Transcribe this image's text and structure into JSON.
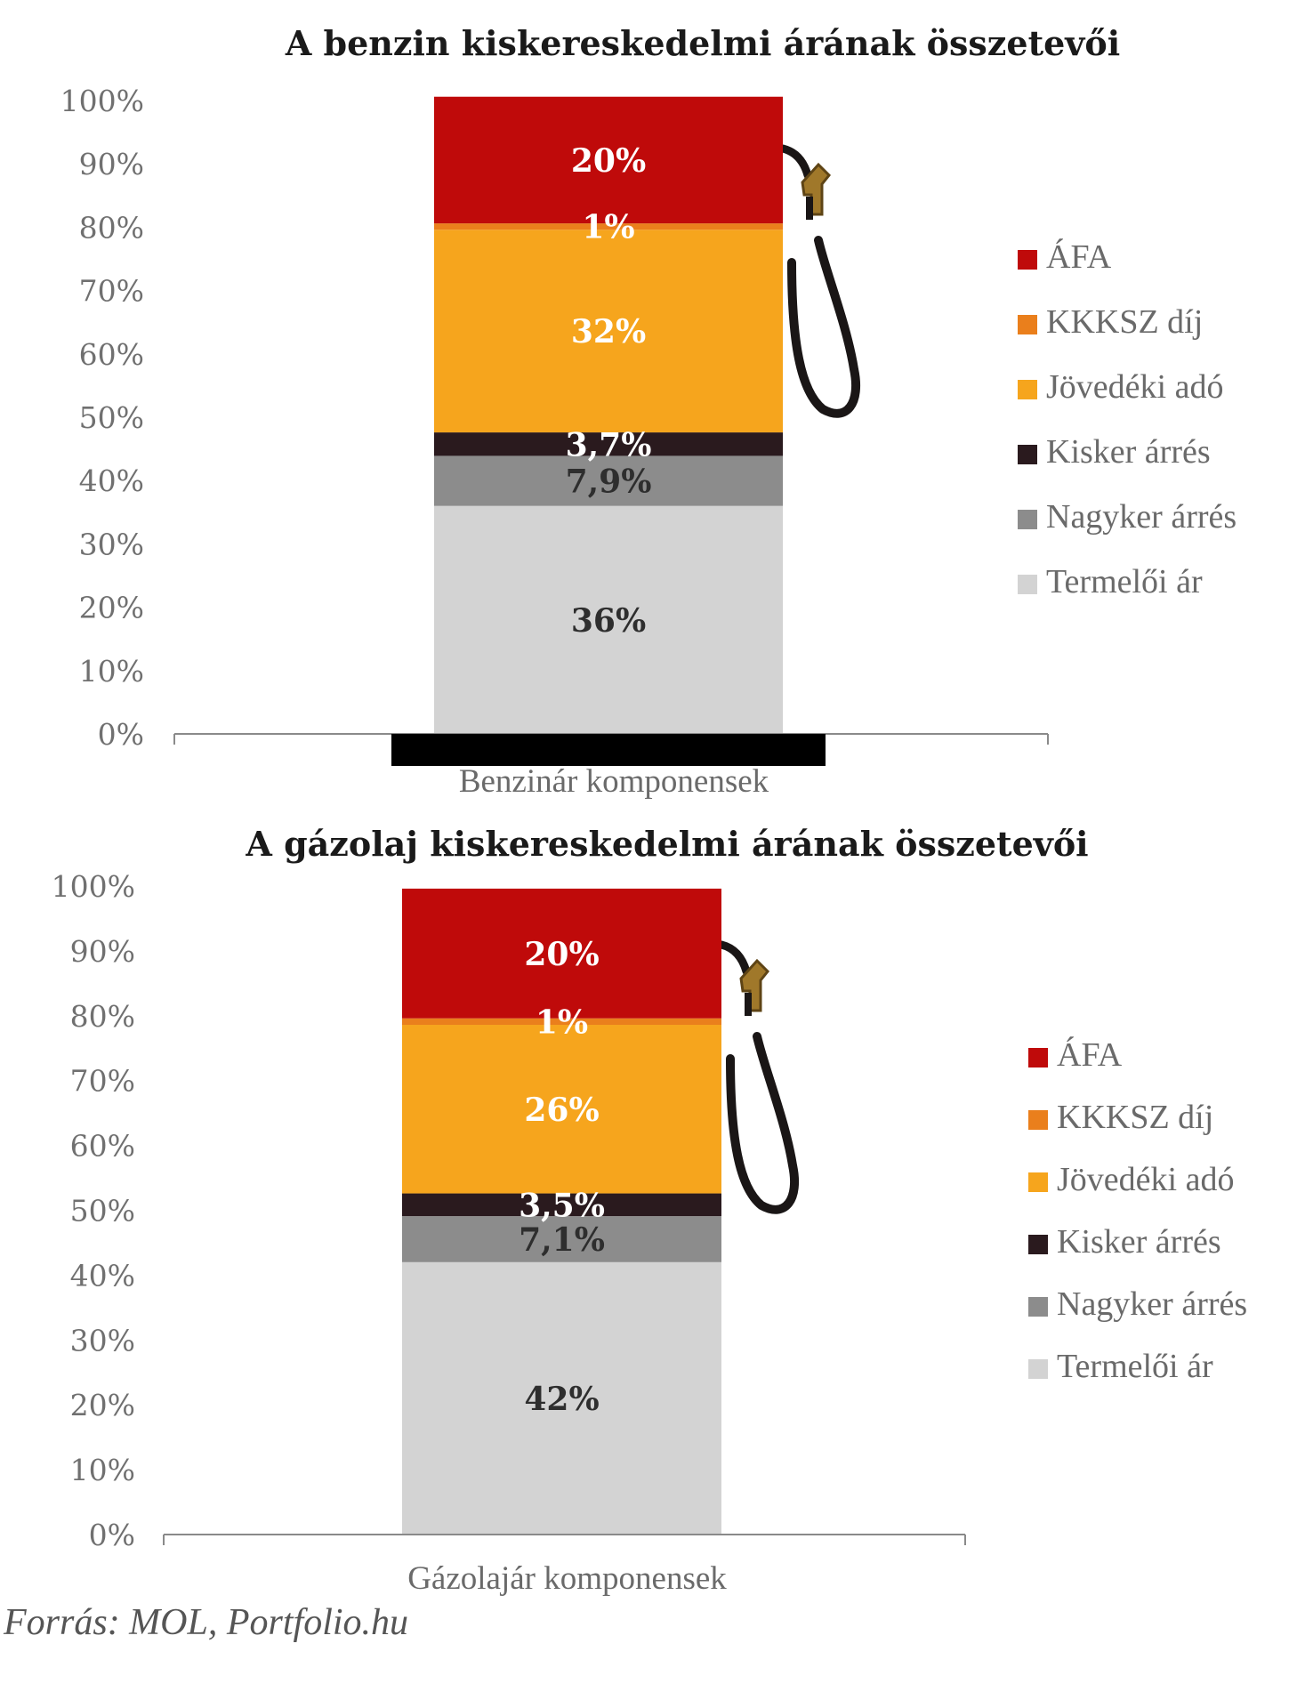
{
  "chart_data": [
    {
      "type": "bar",
      "stacked": true,
      "title": "A benzin kiskereskedelmi árának összetevői",
      "xlabel": "Benzinár komponensek",
      "ylabel": "",
      "ylim": [
        0,
        100
      ],
      "yticks": [
        "0%",
        "10%",
        "20%",
        "30%",
        "40%",
        "50%",
        "60%",
        "70%",
        "80%",
        "90%",
        "100%"
      ],
      "categories": [
        "Benzinár komponensek"
      ],
      "series": [
        {
          "name": "Termelői ár",
          "values": [
            36
          ],
          "label": "36%",
          "color": "#d3d3d3",
          "label_color": "#2e2e2e"
        },
        {
          "name": "Nagyker árrés",
          "values": [
            7.9
          ],
          "label": "7,9%",
          "color": "#8c8c8c",
          "label_color": "#2e2e2e"
        },
        {
          "name": "Kisker árrés",
          "values": [
            3.7
          ],
          "label": "3,7%",
          "color": "#2a1a1e",
          "label_color": "#ffffff"
        },
        {
          "name": "Jövedéki adó",
          "values": [
            32
          ],
          "label": "32%",
          "color": "#f6a51d",
          "label_color": "#ffffff"
        },
        {
          "name": "KKKSZ díj",
          "values": [
            1
          ],
          "label": "1%",
          "color": "#ea7f1c",
          "label_color": "#ffffff"
        },
        {
          "name": "ÁFA",
          "values": [
            20
          ],
          "label": "20%",
          "color": "#bf0a0a",
          "label_color": "#ffffff"
        }
      ],
      "legend": {
        "placement": "right",
        "order": [
          "ÁFA",
          "KKKSZ díj",
          "Jövedéki adó",
          "Kisker árrés",
          "Nagyker árrés",
          "Termelői ár"
        ]
      },
      "decoration": "fuel-pump-nozzle"
    },
    {
      "type": "bar",
      "stacked": true,
      "title": "A gázolaj kiskereskedelmi árának összetevői",
      "xlabel": "Gázolajár komponensek",
      "ylabel": "",
      "ylim": [
        0,
        100
      ],
      "yticks": [
        "0%",
        "10%",
        "20%",
        "30%",
        "40%",
        "50%",
        "60%",
        "70%",
        "80%",
        "90%",
        "100%"
      ],
      "categories": [
        "Gázolajár komponensek"
      ],
      "series": [
        {
          "name": "Termelői ár",
          "values": [
            42
          ],
          "label": "42%",
          "color": "#d3d3d3",
          "label_color": "#2e2e2e"
        },
        {
          "name": "Nagyker árrés",
          "values": [
            7.1
          ],
          "label": "7,1%",
          "color": "#8c8c8c",
          "label_color": "#2e2e2e"
        },
        {
          "name": "Kisker árrés",
          "values": [
            3.5
          ],
          "label": "3,5%",
          "color": "#2a1a1e",
          "label_color": "#ffffff"
        },
        {
          "name": "Jövedéki adó",
          "values": [
            26
          ],
          "label": "26%",
          "color": "#f6a51d",
          "label_color": "#ffffff"
        },
        {
          "name": "KKKSZ díj",
          "values": [
            1
          ],
          "label": "1%",
          "color": "#ea7f1c",
          "label_color": "#ffffff"
        },
        {
          "name": "ÁFA",
          "values": [
            20
          ],
          "label": "20%",
          "color": "#bf0a0a",
          "label_color": "#ffffff"
        }
      ],
      "legend": {
        "placement": "right",
        "order": [
          "ÁFA",
          "KKKSZ díj",
          "Jövedéki adó",
          "Kisker árrés",
          "Nagyker árrés",
          "Termelői ár"
        ]
      },
      "decoration": "fuel-pump-nozzle"
    }
  ],
  "source": "Forrás: MOL, Portfolio.hu"
}
